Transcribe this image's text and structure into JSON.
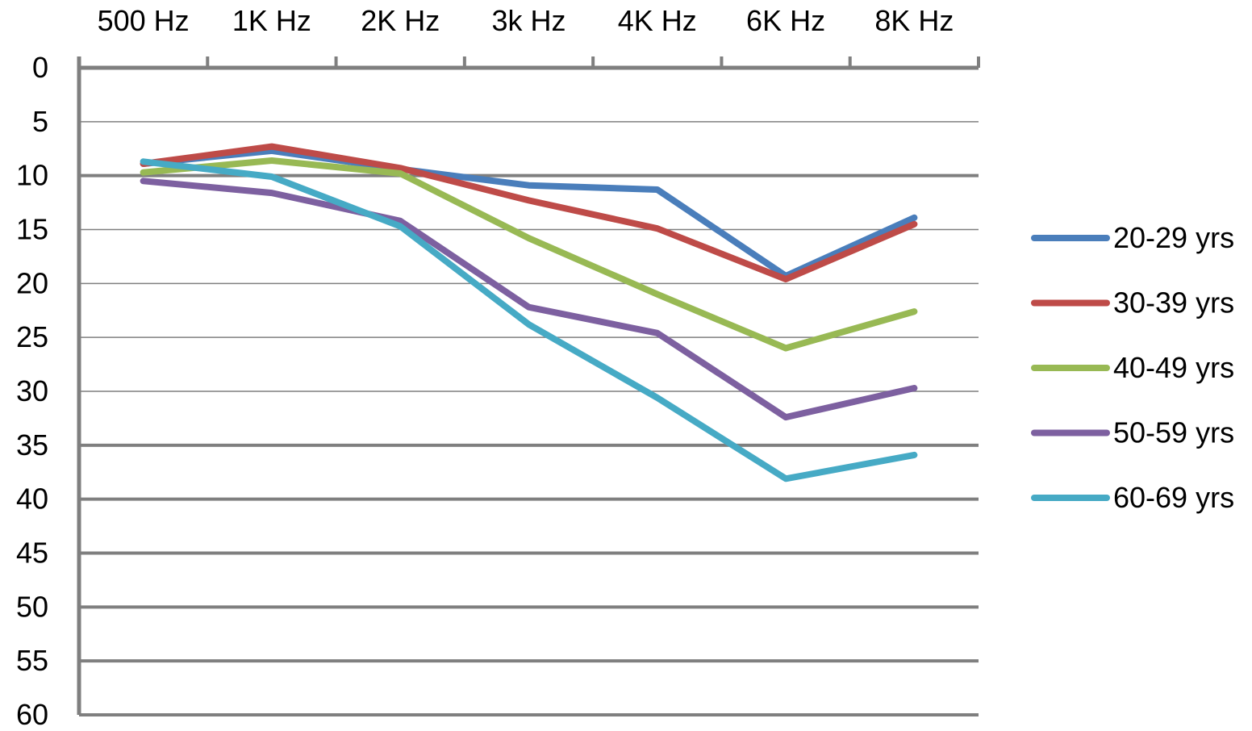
{
  "chart_data": {
    "type": "line",
    "title": "",
    "xlabel": "",
    "ylabel": "",
    "x_axis_position": "top",
    "y_axis_inverted": true,
    "categories": [
      "500 Hz",
      "1K Hz",
      "2K Hz",
      "3k Hz",
      "4K Hz",
      "6K Hz",
      "8K Hz"
    ],
    "ylim": [
      0,
      60
    ],
    "y_ticks": [
      0,
      5,
      10,
      15,
      20,
      25,
      30,
      35,
      40,
      45,
      50,
      55,
      60
    ],
    "grid": true,
    "legend_position": "right",
    "series": [
      {
        "name": "20-29 yrs",
        "color": "#4a7ebb",
        "values": [
          8.9,
          7.7,
          9.4,
          10.9,
          11.3,
          19.3,
          13.9
        ]
      },
      {
        "name": "30-39 yrs",
        "color": "#be4b48",
        "values": [
          8.9,
          7.3,
          9.3,
          12.3,
          14.9,
          19.6,
          14.5
        ]
      },
      {
        "name": "40-49 yrs",
        "color": "#98b954",
        "values": [
          9.7,
          8.6,
          9.8,
          15.8,
          21.0,
          26.0,
          22.6
        ]
      },
      {
        "name": "50-59 yrs",
        "color": "#7d60a0",
        "values": [
          10.5,
          11.6,
          14.2,
          22.2,
          24.6,
          32.4,
          29.7
        ]
      },
      {
        "name": "60-69 yrs",
        "color": "#46aac5",
        "values": [
          8.7,
          10.1,
          14.7,
          23.8,
          30.6,
          38.1,
          35.9
        ]
      }
    ]
  }
}
